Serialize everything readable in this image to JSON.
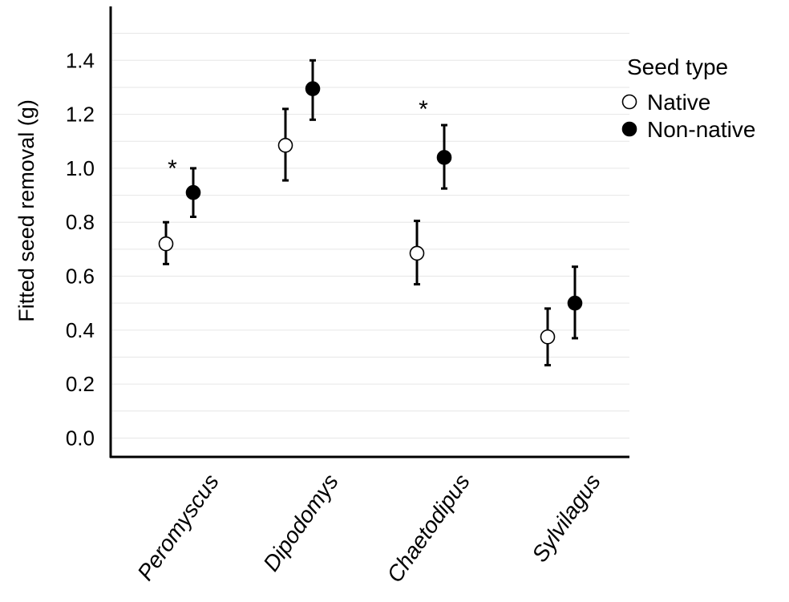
{
  "chart_data": {
    "type": "scatter",
    "ylabel": "Fitted seed removal (g)",
    "xlabel": "",
    "ylim": [
      -0.07,
      1.6
    ],
    "yticks": [
      0.0,
      0.2,
      0.4,
      0.6,
      0.8,
      1.0,
      1.2,
      1.4
    ],
    "ytick_labels": [
      "0.0",
      "0.2",
      "0.4",
      "0.6",
      "0.8",
      "1.0",
      "1.2",
      "1.4"
    ],
    "grid": "horizontal",
    "categories": [
      "Peromyscus",
      "Dipodomys",
      "Chaetodipus",
      "Sylvilagus"
    ],
    "series": [
      {
        "name": "Native",
        "marker": "open-circle",
        "values": [
          0.72,
          1.085,
          0.685,
          0.375
        ],
        "lower": [
          0.645,
          0.955,
          0.57,
          0.27
        ],
        "upper": [
          0.8,
          1.22,
          0.805,
          0.48
        ]
      },
      {
        "name": "Non-native",
        "marker": "filled-circle",
        "values": [
          0.91,
          1.295,
          1.04,
          0.5
        ],
        "lower": [
          0.82,
          1.18,
          0.925,
          0.37
        ],
        "upper": [
          1.0,
          1.4,
          1.16,
          0.635
        ]
      }
    ],
    "legend": {
      "title": "Seed type",
      "placement": "right"
    },
    "annotations": [
      {
        "text": "*",
        "category": "Peromyscus",
        "y": 1.03
      },
      {
        "text": "*",
        "category": "Chaetodipus",
        "y": 1.25
      }
    ],
    "colors": {
      "axis": "#000000",
      "grid": "#e6e6e6",
      "native_fill": "#ffffff",
      "nonnative_fill": "#000000",
      "marker_stroke": "#000000"
    }
  }
}
